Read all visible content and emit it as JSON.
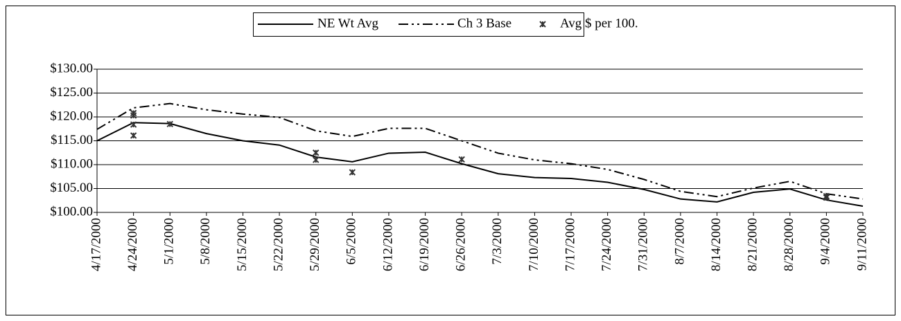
{
  "chart_data": {
    "type": "line",
    "categories": [
      "4/17/2000",
      "4/24/2000",
      "5/1/2000",
      "5/8/2000",
      "5/15/2000",
      "5/22/2000",
      "5/29/2000",
      "6/5/2000",
      "6/12/2000",
      "6/19/2000",
      "6/26/2000",
      "7/3/2000",
      "7/10/2000",
      "7/17/2000",
      "7/24/2000",
      "7/31/2000",
      "8/7/2000",
      "8/14/2000",
      "8/21/2000",
      "8/28/2000",
      "9/4/2000",
      "9/11/2000"
    ],
    "series": [
      {
        "name": "NE Wt Avg",
        "color": "#000000",
        "style": "solid",
        "values": [
          115.0,
          118.8,
          118.6,
          116.5,
          115.0,
          114.1,
          111.6,
          110.6,
          112.4,
          112.6,
          110.2,
          108.1,
          107.3,
          107.1,
          106.3,
          104.8,
          102.8,
          102.2,
          104.2,
          104.9,
          102.6,
          101.3
        ]
      },
      {
        "name": "Ch 3 Base",
        "color": "#000000",
        "style": "dash-dot-dot",
        "values": [
          117.4,
          121.9,
          122.8,
          121.5,
          120.6,
          119.9,
          117.1,
          115.9,
          117.6,
          117.6,
          115.0,
          112.4,
          111.0,
          110.2,
          109.0,
          106.9,
          104.4,
          103.3,
          105.1,
          106.5,
          103.9,
          102.8
        ]
      },
      {
        "name": "Avg $ per 100.",
        "color": "#333333",
        "style": "asterisk",
        "x": [
          "4/24/2000",
          "4/24/2000",
          "4/24/2000",
          "4/24/2000",
          "5/1/2000",
          "5/29/2000",
          "5/29/2000",
          "6/5/2000",
          "6/26/2000",
          "9/4/2000",
          "9/4/2000"
        ],
        "values": [
          120.8,
          120.3,
          118.4,
          116.1,
          118.5,
          112.5,
          111.0,
          108.4,
          111.1,
          103.4,
          103.1
        ]
      }
    ],
    "ylim": [
      100,
      130
    ],
    "yticks": [
      {
        "value": 100,
        "label": "$100.00"
      },
      {
        "value": 105,
        "label": "$105.00"
      },
      {
        "value": 110,
        "label": "$110.00"
      },
      {
        "value": 115,
        "label": "$115.00"
      },
      {
        "value": 120,
        "label": "$120.00"
      },
      {
        "value": 125,
        "label": "$125.00"
      },
      {
        "value": 130,
        "label": "$130.00"
      }
    ],
    "grid": true,
    "legend": "top"
  }
}
